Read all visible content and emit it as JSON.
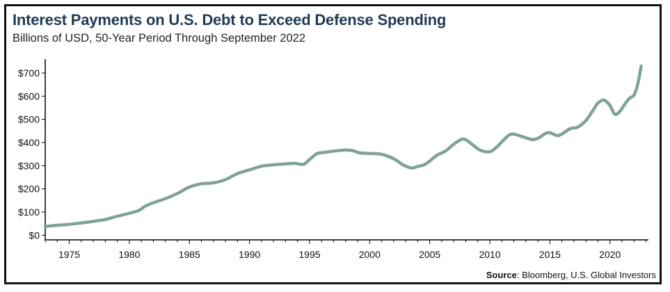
{
  "title": "Interest Payments on U.S. Debt to Exceed Defense Spending",
  "subtitle": "Billions of USD, 50-Year Period Through September 2022",
  "source_label": "Source",
  "source_text": ": Bloomberg, U.S. Global Investors",
  "colors": {
    "line": "#7fa393",
    "title": "#1f3a56",
    "frame": "#111111",
    "axis": "#000000"
  },
  "chart_data": {
    "type": "line",
    "title": "Interest Payments on U.S. Debt to Exceed Defense Spending",
    "subtitle": "Billions of USD, 50-Year Period Through September 2022",
    "xlabel": "",
    "ylabel": "",
    "xlim": [
      1973,
      2023.2
    ],
    "ylim": [
      -20,
      760
    ],
    "x_ticks": [
      1975,
      1980,
      1985,
      1990,
      1995,
      2000,
      2005,
      2010,
      2015,
      2020
    ],
    "x_tick_labels": [
      "1975",
      "1980",
      "1985",
      "1990",
      "1995",
      "2000",
      "2005",
      "2010",
      "2015",
      "2020"
    ],
    "y_ticks": [
      0,
      100,
      200,
      300,
      400,
      500,
      600,
      700
    ],
    "y_tick_labels": [
      "$0",
      "$100",
      "$200",
      "$300",
      "$400",
      "$500",
      "$600",
      "$700"
    ],
    "grid": false,
    "legend": "none",
    "series": [
      {
        "x": [
          1973.0,
          1974.0,
          1975.0,
          1976.0,
          1977.0,
          1978.0,
          1979.0,
          1980.0,
          1980.8,
          1981.3,
          1982.0,
          1983.0,
          1984.0,
          1985.0,
          1986.0,
          1987.0,
          1988.0,
          1989.0,
          1990.0,
          1991.0,
          1992.0,
          1993.0,
          1993.8,
          1994.5,
          1995.0,
          1995.6,
          1996.0,
          1997.0,
          1998.0,
          1998.6,
          1999.2,
          2000.0,
          2001.0,
          2002.0,
          2002.8,
          2003.5,
          2004.0,
          2004.5,
          2005.0,
          2005.6,
          2006.3,
          2007.0,
          2007.6,
          2008.0,
          2008.7,
          2009.2,
          2010.0,
          2010.6,
          2011.0,
          2011.6,
          2012.0,
          2012.8,
          2013.5,
          2014.0,
          2014.6,
          2015.0,
          2015.6,
          2016.0,
          2016.7,
          2017.3,
          2018.0,
          2018.6,
          2019.0,
          2019.5,
          2020.0,
          2020.4,
          2020.8,
          2021.2,
          2021.6,
          2022.0,
          2022.3,
          2022.6
        ],
        "y": [
          38,
          43,
          47,
          53,
          60,
          68,
          82,
          95,
          107,
          125,
          140,
          158,
          180,
          208,
          222,
          226,
          240,
          266,
          282,
          298,
          304,
          308,
          310,
          306,
          327,
          352,
          356,
          363,
          368,
          365,
          355,
          353,
          349,
          330,
          303,
          290,
          297,
          303,
          320,
          345,
          363,
          393,
          413,
          412,
          385,
          367,
          360,
          382,
          403,
          432,
          436,
          424,
          413,
          418,
          438,
          442,
          430,
          437,
          460,
          466,
          495,
          540,
          570,
          583,
          560,
          522,
          533,
          563,
          590,
          605,
          650,
          730
        ]
      }
    ]
  }
}
